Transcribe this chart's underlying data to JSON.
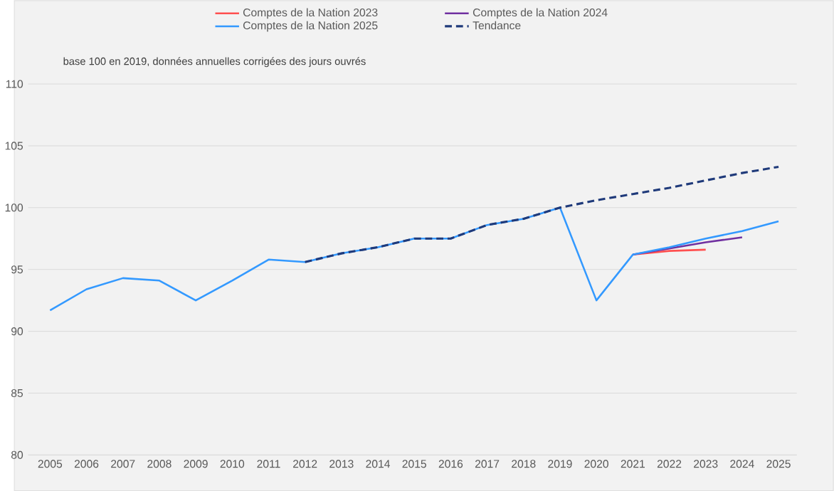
{
  "chart_data": {
    "type": "line",
    "subtitle": "base 100 en 2019, données annuelles corrigées des jours ouvrés",
    "categories": [
      "2005",
      "2006",
      "2007",
      "2008",
      "2009",
      "2010",
      "2011",
      "2012",
      "2013",
      "2014",
      "2015",
      "2016",
      "2017",
      "2018",
      "2019",
      "2020",
      "2021",
      "2022",
      "2023",
      "2024",
      "2025"
    ],
    "series": [
      {
        "name": "Comptes de la Nation 2023",
        "color": "#ff5050",
        "line_style": "solid",
        "values": [
          null,
          null,
          null,
          null,
          null,
          null,
          null,
          null,
          null,
          null,
          null,
          null,
          null,
          null,
          null,
          null,
          96.2,
          96.5,
          96.6,
          null,
          null
        ]
      },
      {
        "name": "Comptes de la Nation 2024",
        "color": "#7030a0",
        "line_style": "solid",
        "values": [
          null,
          null,
          null,
          null,
          null,
          null,
          null,
          null,
          null,
          null,
          null,
          null,
          null,
          null,
          null,
          null,
          96.2,
          96.7,
          97.2,
          97.6,
          null
        ]
      },
      {
        "name": "Comptes de la Nation 2025",
        "color": "#3399ff",
        "line_style": "solid",
        "values": [
          91.7,
          93.4,
          94.3,
          94.1,
          92.5,
          94.1,
          95.8,
          95.6,
          96.3,
          96.8,
          97.5,
          97.5,
          98.6,
          99.1,
          100,
          92.5,
          96.2,
          96.8,
          97.5,
          98.1,
          98.9
        ]
      },
      {
        "name": "Tendance",
        "color": "#1f3a7a",
        "line_style": "dashed",
        "values": [
          null,
          null,
          null,
          null,
          null,
          null,
          null,
          95.6,
          96.3,
          96.8,
          97.5,
          97.5,
          98.6,
          99.1,
          100,
          100.6,
          101.1,
          101.6,
          102.2,
          102.8,
          103.3
        ]
      }
    ],
    "ylim": [
      80,
      110
    ],
    "yticks": [
      80,
      85,
      90,
      95,
      100,
      105,
      110
    ],
    "grid": "y",
    "legend": "top",
    "marker": "none"
  }
}
